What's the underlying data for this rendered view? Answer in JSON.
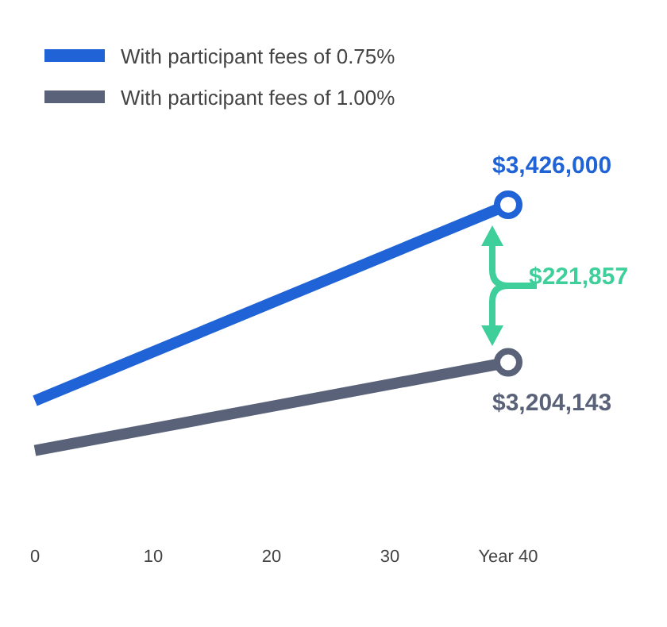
{
  "chart_data": {
    "type": "line",
    "x": [
      0,
      40
    ],
    "xlim": [
      0,
      40
    ],
    "xticks": [
      0,
      10,
      20,
      30,
      {
        "value": 40,
        "label": "Year 40"
      }
    ],
    "series": [
      {
        "name": "With participant fees of 0.75%",
        "color": "#1f63d6",
        "values": [
          3150000,
          3426000
        ],
        "value_labels": [
          null,
          "$3,426,000"
        ]
      },
      {
        "name": "With participant fees of 1.00%",
        "color": "#596278",
        "values": [
          3080000,
          3204143
        ],
        "value_labels": [
          null,
          "$3,204,143"
        ]
      }
    ],
    "annotations": [
      "$221,857"
    ],
    "legend": "top left",
    "marker": "circle",
    "grid": false,
    "tick_labels": "x"
  }
}
